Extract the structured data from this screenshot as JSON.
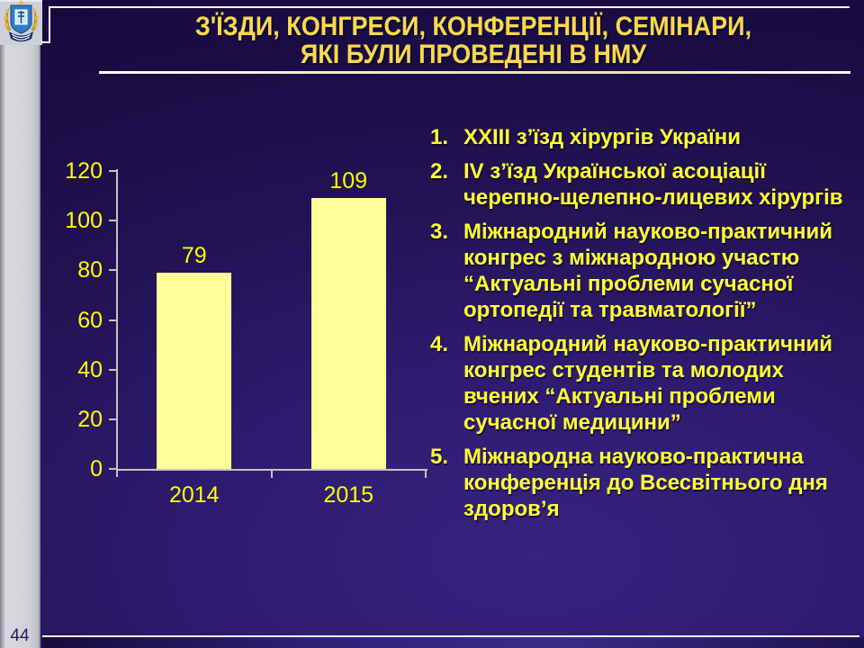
{
  "slide": {
    "page_number": "44",
    "title": {
      "lines": [
        "З'ЇЗДИ, КОНГРЕСИ, КОНФЕРЕНЦІЇ, СЕМІНАРИ,",
        "ЯКІ БУЛИ ПРОВЕДЕНІ В НМУ"
      ],
      "color": "#FFD84A"
    },
    "logo_name": "nmu-coat-of-arms",
    "list_items": [
      {
        "number": "1.",
        "text": "XXIII з’їзд хірургів України"
      },
      {
        "number": "2.",
        "text": "IV з’їзд Української асоціації черепно-щелепно-лицевих хірургів"
      },
      {
        "number": "3.",
        "text": "Міжнародний науково-практичний конгрес з міжнародною участю “Актуальні проблеми сучасної ортопедії та травматології”"
      },
      {
        "number": "4.",
        "text": "Міжнародний науково-практичний конгрес студентів та молодих вчених “Актуальні проблеми сучасної медицини”"
      },
      {
        "number": "5.",
        "text": "Міжнародна науково-практична конференція до Всесвітнього дня здоров’я"
      }
    ],
    "list_text_color": "#FFFF33"
  },
  "chart_data": {
    "type": "bar",
    "categories": [
      "2014",
      "2015"
    ],
    "values": [
      79,
      109
    ],
    "data_labels": [
      "79",
      "109"
    ],
    "title": "",
    "xlabel": "",
    "ylabel": "",
    "ylim": [
      0,
      120
    ],
    "yticks": [
      0,
      20,
      40,
      60,
      80,
      100,
      120
    ],
    "grid": false,
    "legend": false,
    "bar_color": "#FFFF99",
    "number_color": "#FFFF00",
    "axis_color": "#C4C4C4"
  }
}
